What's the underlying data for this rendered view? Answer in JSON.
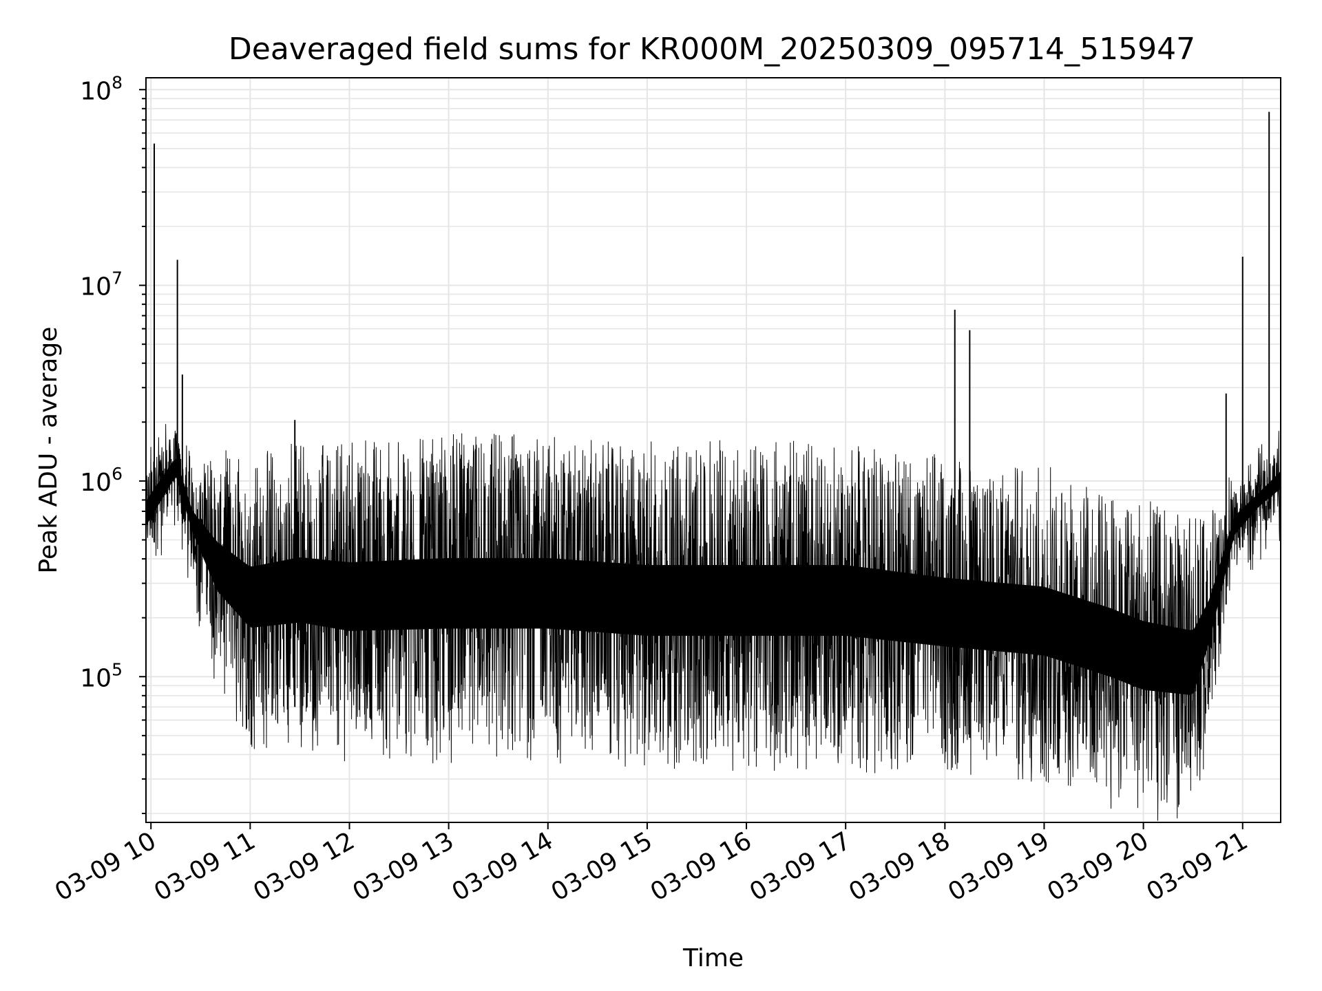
{
  "chart_data": {
    "type": "line",
    "title": "Deaveraged field sums for KR000M_20250309_095714_515947",
    "xlabel": "Time",
    "ylabel": "Peak ADU - average",
    "yscale": "log",
    "ylim": [
      18000,
      115000000
    ],
    "xlim": [
      "2025-03-09 09:57",
      "2025-03-09 21:23"
    ],
    "grid": true,
    "line_color": "#000000",
    "grid_color": "#e5e5e5",
    "x_ticks": [
      {
        "value": "2025-03-09 10:00",
        "label": "03-09 10"
      },
      {
        "value": "2025-03-09 11:00",
        "label": "03-09 11"
      },
      {
        "value": "2025-03-09 12:00",
        "label": "03-09 12"
      },
      {
        "value": "2025-03-09 13:00",
        "label": "03-09 13"
      },
      {
        "value": "2025-03-09 14:00",
        "label": "03-09 14"
      },
      {
        "value": "2025-03-09 15:00",
        "label": "03-09 15"
      },
      {
        "value": "2025-03-09 16:00",
        "label": "03-09 16"
      },
      {
        "value": "2025-03-09 17:00",
        "label": "03-09 17"
      },
      {
        "value": "2025-03-09 18:00",
        "label": "03-09 18"
      },
      {
        "value": "2025-03-09 19:00",
        "label": "03-09 19"
      },
      {
        "value": "2025-03-09 20:00",
        "label": "03-09 20"
      },
      {
        "value": "2025-03-09 21:00",
        "label": "03-09 21"
      }
    ],
    "y_ticks": [
      {
        "value": 100000,
        "base": "10",
        "exp": "5"
      },
      {
        "value": 1000000,
        "base": "10",
        "exp": "6"
      },
      {
        "value": 10000000,
        "base": "10",
        "exp": "7"
      },
      {
        "value": 100000000,
        "base": "10",
        "exp": "8"
      }
    ],
    "envelope": [
      {
        "t": "2025-03-09 09:57",
        "low": 400000,
        "high": 1200000
      },
      {
        "t": "2025-03-09 10:15",
        "low": 800000,
        "high": 1800000
      },
      {
        "t": "2025-03-09 10:25",
        "low": 400000,
        "high": 1000000
      },
      {
        "t": "2025-03-09 10:40",
        "low": 130000,
        "high": 1100000
      },
      {
        "t": "2025-03-09 11:00",
        "low": 70000,
        "high": 1000000
      },
      {
        "t": "2025-03-09 11:30",
        "low": 70000,
        "high": 1200000
      },
      {
        "t": "2025-03-09 12:00",
        "low": 60000,
        "high": 1200000
      },
      {
        "t": "2025-03-09 13:00",
        "low": 60000,
        "high": 1300000
      },
      {
        "t": "2025-03-09 14:00",
        "low": 60000,
        "high": 1300000
      },
      {
        "t": "2025-03-09 15:00",
        "low": 55000,
        "high": 1200000
      },
      {
        "t": "2025-03-09 16:00",
        "low": 55000,
        "high": 1200000
      },
      {
        "t": "2025-03-09 17:00",
        "low": 55000,
        "high": 1200000
      },
      {
        "t": "2025-03-09 18:00",
        "low": 50000,
        "high": 1000000
      },
      {
        "t": "2025-03-09 19:00",
        "low": 45000,
        "high": 900000
      },
      {
        "t": "2025-03-09 19:40",
        "low": 35000,
        "high": 700000
      },
      {
        "t": "2025-03-09 20:00",
        "low": 30000,
        "high": 600000
      },
      {
        "t": "2025-03-09 20:30",
        "low": 30000,
        "high": 500000
      },
      {
        "t": "2025-03-09 20:40",
        "low": 80000,
        "high": 500000
      },
      {
        "t": "2025-03-09 20:55",
        "low": 400000,
        "high": 900000
      },
      {
        "t": "2025-03-09 21:10",
        "low": 600000,
        "high": 1100000
      },
      {
        "t": "2025-03-09 21:23",
        "low": 700000,
        "high": 1500000
      }
    ],
    "spikes": [
      {
        "t": "2025-03-09 10:02",
        "value": 53000000
      },
      {
        "t": "2025-03-09 10:16",
        "value": 13500000
      },
      {
        "t": "2025-03-09 10:19",
        "value": 3500000
      },
      {
        "t": "2025-03-09 11:27",
        "value": 2050000
      },
      {
        "t": "2025-03-09 18:06",
        "value": 7500000
      },
      {
        "t": "2025-03-09 18:15",
        "value": 5900000
      },
      {
        "t": "2025-03-09 20:50",
        "value": 2800000
      },
      {
        "t": "2025-03-09 21:00",
        "value": 14000000
      },
      {
        "t": "2025-03-09 21:16",
        "value": 77000000
      }
    ]
  }
}
